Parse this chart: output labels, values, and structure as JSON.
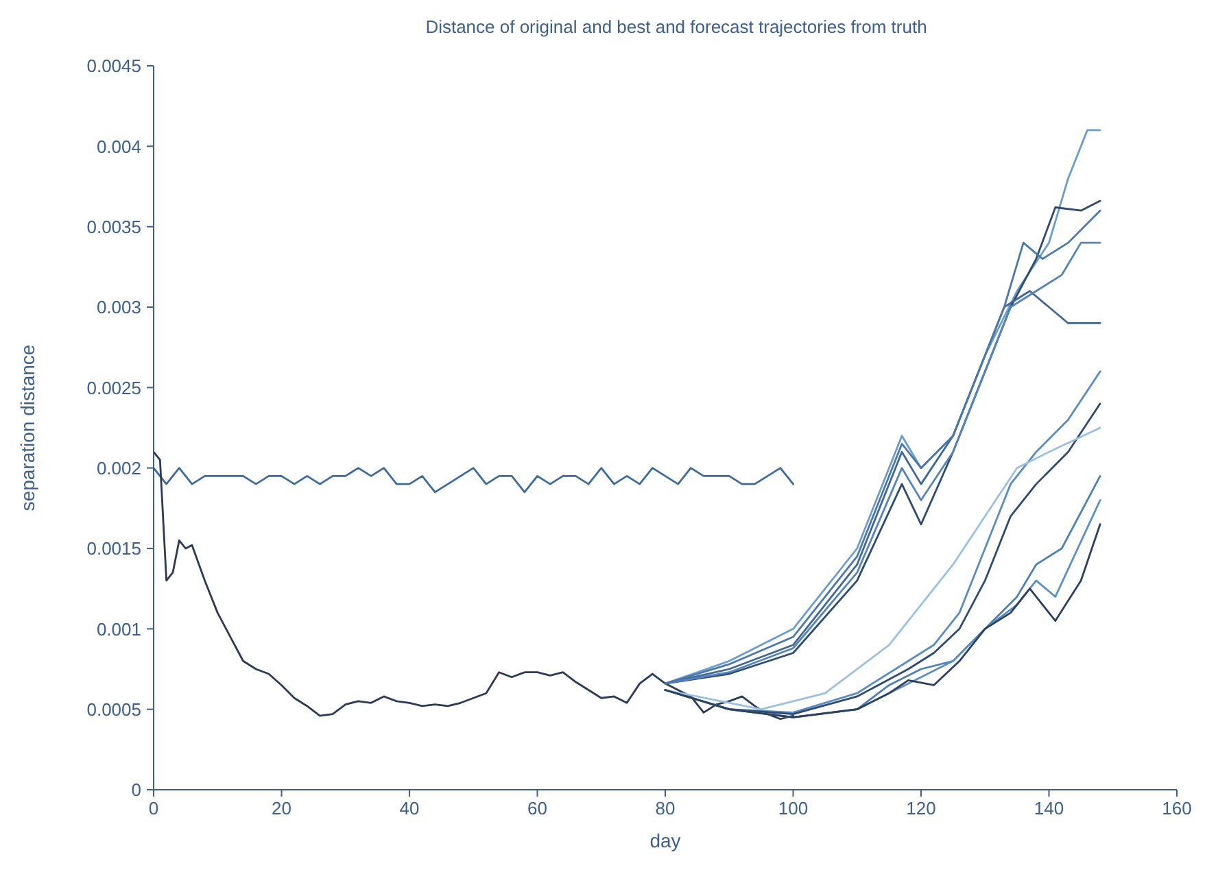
{
  "chart_data": {
    "type": "line",
    "title": "Distance of original and best and forecast trajectories from truth",
    "xlabel": "day",
    "ylabel": "separation distance",
    "xlim": [
      0,
      160
    ],
    "xticks": [
      0,
      20,
      40,
      60,
      80,
      100,
      120,
      140,
      160
    ],
    "ylim": [
      0,
      0.0045
    ],
    "yticks": [
      0,
      0.0005,
      0.001,
      0.0015,
      0.002,
      0.0025,
      0.003,
      0.0035,
      0.004,
      0.0045
    ],
    "grid": false,
    "marker": "none",
    "line_style": "solid",
    "series": [
      {
        "color": "#3d6a9e",
        "x": [
          0,
          2,
          4,
          6,
          8,
          10,
          12,
          14,
          16,
          18,
          20,
          22,
          24,
          26,
          28,
          30,
          32,
          34,
          36,
          38,
          40,
          42,
          44,
          46,
          48,
          50,
          52,
          54,
          56,
          58,
          60,
          62,
          64,
          66,
          68,
          70,
          72,
          74,
          76,
          78,
          80,
          82,
          84,
          86,
          88,
          90,
          92,
          94,
          96,
          98,
          100
        ],
        "values": [
          0.002,
          0.0019,
          0.002,
          0.0019,
          0.00195,
          0.00195,
          0.00195,
          0.00195,
          0.0019,
          0.00195,
          0.00195,
          0.0019,
          0.00195,
          0.0019,
          0.00195,
          0.00195,
          0.002,
          0.00195,
          0.002,
          0.0019,
          0.0019,
          0.00195,
          0.00185,
          0.0019,
          0.00195,
          0.002,
          0.0019,
          0.00195,
          0.00195,
          0.00185,
          0.00195,
          0.0019,
          0.00195,
          0.00195,
          0.0019,
          0.002,
          0.0019,
          0.00195,
          0.0019,
          0.002,
          0.00195,
          0.0019,
          0.002,
          0.00195,
          0.00195,
          0.00195,
          0.0019,
          0.0019,
          0.00195,
          0.002,
          0.0019
        ]
      },
      {
        "color": "#2c3a55",
        "x": [
          0,
          1,
          2,
          3,
          4,
          5,
          6,
          8,
          10,
          12,
          14,
          16,
          18,
          20,
          22,
          24,
          26,
          28,
          30,
          32,
          34,
          36,
          38,
          40,
          42,
          44,
          46,
          48,
          50,
          52,
          54,
          56,
          58,
          60,
          62,
          64,
          66,
          68,
          70,
          72,
          74,
          76,
          78,
          80,
          82,
          84,
          86,
          88,
          90,
          92,
          94,
          96,
          98,
          100
        ],
        "values": [
          0.0021,
          0.00205,
          0.0013,
          0.00135,
          0.00155,
          0.0015,
          0.00152,
          0.0013,
          0.0011,
          0.00095,
          0.0008,
          0.00075,
          0.00072,
          0.00065,
          0.00057,
          0.00052,
          0.00046,
          0.00047,
          0.00053,
          0.00055,
          0.00054,
          0.00058,
          0.00055,
          0.00054,
          0.00052,
          0.00053,
          0.00052,
          0.00054,
          0.00057,
          0.0006,
          0.00073,
          0.0007,
          0.00073,
          0.00073,
          0.00071,
          0.00073,
          0.00067,
          0.00062,
          0.00057,
          0.00058,
          0.00054,
          0.00066,
          0.00072,
          0.00066,
          0.00062,
          0.00058,
          0.00048,
          0.00053,
          0.00055,
          0.00058,
          0.00052,
          0.00047,
          0.00044,
          0.00046
        ]
      },
      {
        "color": "#6a9ccc",
        "x": [
          80,
          90,
          100,
          110,
          117,
          120,
          125,
          130,
          135,
          140,
          143,
          146,
          148
        ],
        "values": [
          0.00066,
          0.0008,
          0.001,
          0.0015,
          0.0022,
          0.002,
          0.0022,
          0.0027,
          0.0031,
          0.0034,
          0.0038,
          0.0041,
          0.0041
        ]
      },
      {
        "color": "#2f4a70",
        "x": [
          80,
          90,
          100,
          110,
          117,
          120,
          125,
          130,
          134,
          138,
          141,
          145,
          148
        ],
        "values": [
          0.00066,
          0.00072,
          0.00085,
          0.0013,
          0.0019,
          0.00165,
          0.0021,
          0.0026,
          0.003,
          0.0033,
          0.00362,
          0.0036,
          0.00366
        ]
      },
      {
        "color": "#3e6696",
        "x": [
          80,
          90,
          100,
          110,
          117,
          120,
          125,
          130,
          133,
          137,
          140,
          143,
          148
        ],
        "values": [
          0.00066,
          0.00075,
          0.0009,
          0.0014,
          0.0021,
          0.0019,
          0.0022,
          0.0027,
          0.003,
          0.0031,
          0.003,
          0.0029,
          0.0029
        ]
      },
      {
        "color": "#5584b8",
        "x": [
          80,
          90,
          100,
          110,
          117,
          120,
          125,
          130,
          134,
          138,
          142,
          145,
          148
        ],
        "values": [
          0.00066,
          0.00073,
          0.00088,
          0.00135,
          0.002,
          0.0018,
          0.0021,
          0.0026,
          0.003,
          0.0031,
          0.0032,
          0.0034,
          0.0034
        ]
      },
      {
        "color": "#4a78ad",
        "x": [
          80,
          90,
          100,
          110,
          117,
          120,
          125,
          130,
          133,
          136,
          139,
          143,
          148
        ],
        "values": [
          0.00066,
          0.00078,
          0.00095,
          0.00145,
          0.00215,
          0.002,
          0.0022,
          0.0027,
          0.003,
          0.0034,
          0.0033,
          0.0034,
          0.0036
        ]
      },
      {
        "color": "#5a8cc0",
        "x": [
          80,
          90,
          100,
          110,
          118,
          122,
          126,
          130,
          134,
          138,
          143,
          148
        ],
        "values": [
          0.00062,
          0.0005,
          0.00048,
          0.0006,
          0.0008,
          0.0009,
          0.0011,
          0.0015,
          0.0019,
          0.0021,
          0.0023,
          0.0026
        ]
      },
      {
        "color": "#2f4a70",
        "x": [
          80,
          90,
          100,
          110,
          118,
          122,
          126,
          130,
          134,
          138,
          143,
          148
        ],
        "values": [
          0.00062,
          0.0005,
          0.00047,
          0.00058,
          0.00075,
          0.00085,
          0.001,
          0.0013,
          0.0017,
          0.0019,
          0.0021,
          0.0024
        ]
      },
      {
        "color": "#9cc0e0",
        "x": [
          80,
          95,
          105,
          115,
          120,
          125,
          130,
          135,
          140,
          148
        ],
        "values": [
          0.00062,
          0.0005,
          0.0006,
          0.0009,
          0.00115,
          0.0014,
          0.0017,
          0.002,
          0.0021,
          0.00225
        ]
      },
      {
        "color": "#4f80b5",
        "x": [
          80,
          90,
          100,
          110,
          115,
          120,
          125,
          130,
          135,
          138,
          142,
          148
        ],
        "values": [
          0.00062,
          0.0005,
          0.00045,
          0.0005,
          0.00065,
          0.00075,
          0.0008,
          0.001,
          0.0012,
          0.0014,
          0.0015,
          0.00195
        ]
      },
      {
        "color": "#5d8fc2",
        "x": [
          80,
          90,
          100,
          110,
          115,
          120,
          125,
          130,
          135,
          138,
          141,
          148
        ],
        "values": [
          0.00062,
          0.0005,
          0.00045,
          0.0005,
          0.0006,
          0.0007,
          0.0008,
          0.001,
          0.00115,
          0.0013,
          0.0012,
          0.0018
        ]
      },
      {
        "color": "#2c3f60",
        "x": [
          80,
          90,
          100,
          110,
          115,
          118,
          122,
          126,
          130,
          134,
          137,
          141,
          145,
          148
        ],
        "values": [
          0.00062,
          0.0005,
          0.00045,
          0.0005,
          0.0006,
          0.00068,
          0.00065,
          0.0008,
          0.001,
          0.0011,
          0.00125,
          0.00105,
          0.0013,
          0.00165
        ]
      }
    ]
  }
}
